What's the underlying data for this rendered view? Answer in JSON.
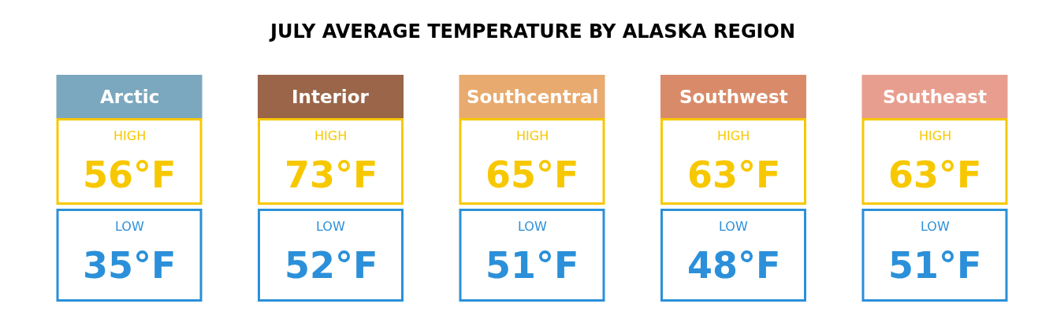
{
  "chart_data": {
    "type": "other",
    "title": "JULY AVERAGE TEMPERATURE BY ALASKA REGION",
    "categories": [
      "Arctic",
      "Interior",
      "Southcentral",
      "Southwest",
      "Southeast"
    ],
    "colors": [
      "#7ba7bf",
      "#9a6549",
      "#e8aa6f",
      "#d98b69",
      "#e89e8e"
    ],
    "series": [
      {
        "name": "HIGH",
        "color": "#f7c800",
        "values": [
          56,
          73,
          65,
          63,
          63
        ],
        "value_labels": [
          "56°F",
          "73°F",
          "65°F",
          "63°F",
          "63°F"
        ]
      },
      {
        "name": "LOW",
        "color": "#2b90d9",
        "values": [
          35,
          52,
          51,
          48,
          51
        ],
        "value_labels": [
          "35°F",
          "52°F",
          "51°F",
          "48°F",
          "51°F"
        ]
      }
    ]
  }
}
